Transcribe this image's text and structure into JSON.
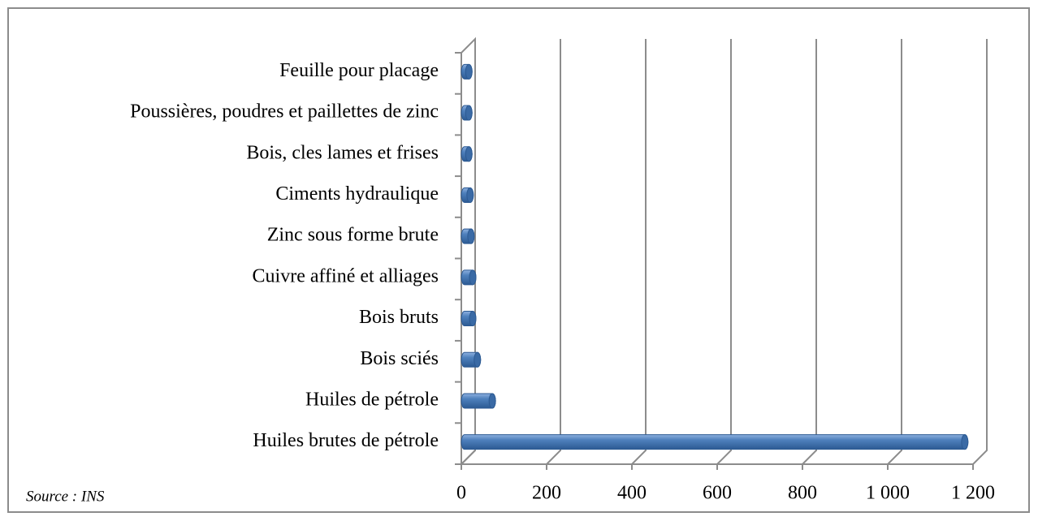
{
  "chart_data": {
    "type": "bar",
    "orientation": "horizontal",
    "style": "3d-cylinder",
    "categories": [
      "Huiles brutes de pétrole",
      "Huiles de pétrole",
      "Bois sciés",
      "Bois bruts",
      "Cuivre affiné et alliages",
      "Zinc sous forme brute",
      "Ciments hydraulique",
      "Bois,  cles lames et frises",
      "Poussières, poudres et paillettes de zinc",
      "Feuille pour placage"
    ],
    "values": [
      1173,
      65,
      30,
      19,
      19,
      15,
      13,
      10,
      10,
      10
    ],
    "color": "#4f81bd",
    "xlim": [
      0,
      1200
    ],
    "xticks": [
      0,
      200,
      400,
      600,
      800,
      {
        "value": 1000,
        "label": "1 000"
      },
      {
        "value": 1200,
        "label": "1 200"
      }
    ],
    "grid": true,
    "source": "Source : INS"
  }
}
